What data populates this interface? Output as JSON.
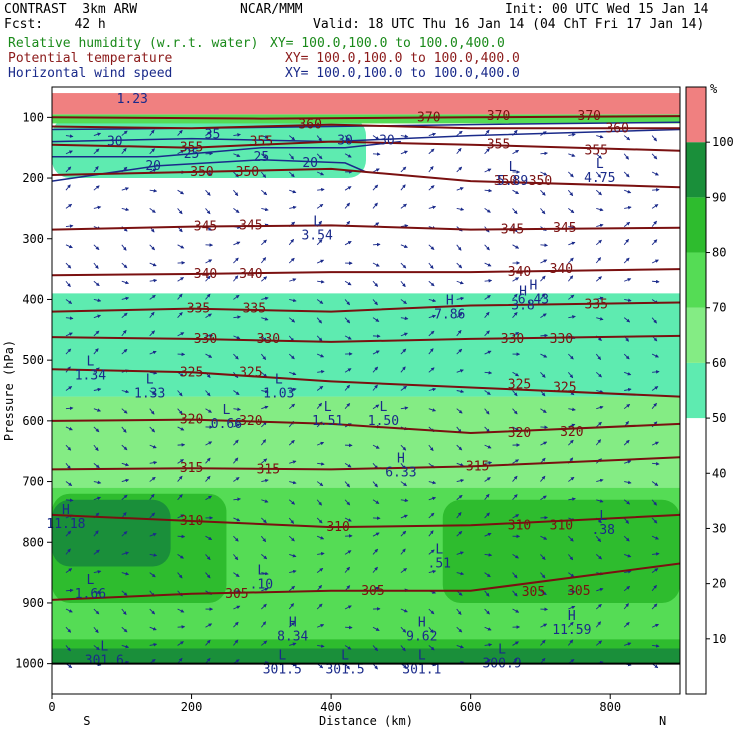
{
  "header": {
    "model": "CONTRAST  3km ARW",
    "fcst": "Fcst:    42 h",
    "org": "NCAR/MMM",
    "init": "Init: 00 UTC Wed 15 Jan 14",
    "valid": "Valid: 18 UTC Thu 16 Jan 14 (04 ChT Fri 17 Jan 14)",
    "fields": [
      {
        "name": "Relative humidity (w.r.t. water)",
        "xy": "XY= 100.0,100.0 to 100.0,400.0",
        "color": "#1a8a1a"
      },
      {
        "name": "Potential temperature",
        "xy": "XY= 100.0,100.0 to 100.0,400.0",
        "color": "#8b1a1a"
      },
      {
        "name": "Horizontal wind speed",
        "xy": "XY= 100.0,100.0 to 100.0,400.0",
        "color": "#1a2a8a"
      }
    ]
  },
  "chart_data": {
    "type": "heatmap",
    "xlabel": "Distance (km)",
    "ylabel": "Pressure (hPa)",
    "xlim": [
      0,
      900
    ],
    "ylim": [
      1050,
      50
    ],
    "x_ticks": [
      0,
      200,
      400,
      600,
      800
    ],
    "y_ticks": [
      100,
      200,
      300,
      400,
      500,
      600,
      700,
      800,
      900,
      1000
    ],
    "x_end_labels": {
      "left": "S",
      "right": "N"
    },
    "colorbar": {
      "unit": "%",
      "ticks": [
        10,
        20,
        30,
        40,
        50,
        60,
        70,
        80,
        90,
        100
      ],
      "levels": [
        {
          "from": 50,
          "to": 60,
          "color": "#5eebb0"
        },
        {
          "from": 60,
          "to": 70,
          "color": "#84ec84"
        },
        {
          "from": 70,
          "to": 80,
          "color": "#55dc55"
        },
        {
          "from": 80,
          "to": 90,
          "color": "#2ebc2e"
        },
        {
          "from": 90,
          "to": 100,
          "color": "#1a8f3a"
        },
        {
          "from": 100,
          "to": 110,
          "color": "#f08080"
        }
      ]
    },
    "rh_regions": [
      {
        "x0": 0,
        "x1": 900,
        "p0": 1000,
        "p1": 710,
        "level": 70
      },
      {
        "x0": 0,
        "x1": 900,
        "p0": 710,
        "p1": 560,
        "level": 60
      },
      {
        "x0": 0,
        "x1": 900,
        "p0": 560,
        "p1": 480,
        "level": 50
      },
      {
        "x0": 0,
        "x1": 900,
        "p0": 480,
        "p1": 390,
        "level": 50
      },
      {
        "x0": 0,
        "x1": 250,
        "p0": 900,
        "p1": 720,
        "level": 80
      },
      {
        "x0": 0,
        "x1": 170,
        "p0": 840,
        "p1": 730,
        "level": 90
      },
      {
        "x0": 560,
        "x1": 900,
        "p0": 900,
        "p1": 730,
        "level": 80
      },
      {
        "x0": 0,
        "x1": 900,
        "p0": 1000,
        "p1": 960,
        "level": 80
      },
      {
        "x0": 0,
        "x1": 900,
        "p0": 1000,
        "p1": 975,
        "level": 90
      },
      {
        "x0": 0,
        "x1": 450,
        "p0": 200,
        "p1": 100,
        "level": 50
      },
      {
        "x0": 0,
        "x1": 900,
        "p0": 110,
        "p1": 95,
        "level": 70
      },
      {
        "x0": 0,
        "x1": 900,
        "p0": 95,
        "p1": 60,
        "level": 100
      }
    ],
    "theta_contours": [
      {
        "label": "305",
        "points": [
          [
            0,
            895
          ],
          [
            200,
            885
          ],
          [
            400,
            880
          ],
          [
            600,
            880
          ],
          [
            900,
            835
          ]
        ]
      },
      {
        "label": "310",
        "points": [
          [
            0,
            755
          ],
          [
            200,
            765
          ],
          [
            400,
            775
          ],
          [
            600,
            772
          ],
          [
            900,
            755
          ]
        ]
      },
      {
        "label": "315",
        "points": [
          [
            0,
            680
          ],
          [
            200,
            678
          ],
          [
            400,
            680
          ],
          [
            600,
            675
          ],
          [
            900,
            660
          ]
        ]
      },
      {
        "label": "320",
        "points": [
          [
            0,
            600
          ],
          [
            200,
            598
          ],
          [
            400,
            605
          ],
          [
            600,
            620
          ],
          [
            900,
            605
          ]
        ]
      },
      {
        "label": "325",
        "points": [
          [
            0,
            515
          ],
          [
            200,
            520
          ],
          [
            400,
            535
          ],
          [
            600,
            545
          ],
          [
            900,
            560
          ]
        ]
      },
      {
        "label": "330",
        "points": [
          [
            0,
            462
          ],
          [
            200,
            465
          ],
          [
            400,
            470
          ],
          [
            600,
            465
          ],
          [
            900,
            460
          ]
        ]
      },
      {
        "label": "335",
        "points": [
          [
            0,
            420
          ],
          [
            200,
            415
          ],
          [
            400,
            420
          ],
          [
            600,
            410
          ],
          [
            900,
            405
          ]
        ]
      },
      {
        "label": "340",
        "points": [
          [
            0,
            360
          ],
          [
            200,
            358
          ],
          [
            400,
            355
          ],
          [
            600,
            355
          ],
          [
            900,
            350
          ]
        ]
      },
      {
        "label": "345",
        "points": [
          [
            0,
            285
          ],
          [
            200,
            280
          ],
          [
            400,
            278
          ],
          [
            600,
            285
          ],
          [
            900,
            282
          ]
        ]
      },
      {
        "label": "350",
        "points": [
          [
            0,
            195
          ],
          [
            200,
            190
          ],
          [
            400,
            185
          ],
          [
            600,
            205
          ],
          [
            900,
            215
          ]
        ]
      },
      {
        "label": "355",
        "points": [
          [
            0,
            145
          ],
          [
            200,
            150
          ],
          [
            400,
            140
          ],
          [
            600,
            145
          ],
          [
            900,
            155
          ]
        ]
      },
      {
        "label": "360",
        "points": [
          [
            0,
            115
          ],
          [
            200,
            118
          ],
          [
            400,
            112
          ],
          [
            600,
            118
          ],
          [
            900,
            118
          ]
        ]
      },
      {
        "label": "370",
        "points": [
          [
            0,
            100
          ],
          [
            300,
            102
          ],
          [
            600,
            100
          ],
          [
            900,
            98
          ]
        ]
      }
    ],
    "theta_labels": [
      {
        "text": "305",
        "x": 265,
        "p": 885
      },
      {
        "text": "305",
        "x": 460,
        "p": 880
      },
      {
        "text": "305",
        "x": 690,
        "p": 882
      },
      {
        "text": "305",
        "x": 755,
        "p": 880
      },
      {
        "text": "310",
        "x": 200,
        "p": 765
      },
      {
        "text": "310",
        "x": 410,
        "p": 775
      },
      {
        "text": "310",
        "x": 670,
        "p": 772
      },
      {
        "text": "310",
        "x": 730,
        "p": 772
      },
      {
        "text": "315",
        "x": 200,
        "p": 678
      },
      {
        "text": "315",
        "x": 310,
        "p": 680
      },
      {
        "text": "315",
        "x": 610,
        "p": 675
      },
      {
        "text": "320",
        "x": 200,
        "p": 598
      },
      {
        "text": "320",
        "x": 285,
        "p": 600
      },
      {
        "text": "320",
        "x": 670,
        "p": 620
      },
      {
        "text": "320",
        "x": 745,
        "p": 618
      },
      {
        "text": "325",
        "x": 200,
        "p": 520
      },
      {
        "text": "325",
        "x": 285,
        "p": 520
      },
      {
        "text": "325",
        "x": 670,
        "p": 540
      },
      {
        "text": "325",
        "x": 735,
        "p": 545
      },
      {
        "text": "330",
        "x": 220,
        "p": 465
      },
      {
        "text": "330",
        "x": 310,
        "p": 465
      },
      {
        "text": "330",
        "x": 660,
        "p": 465
      },
      {
        "text": "330",
        "x": 730,
        "p": 465
      },
      {
        "text": "335",
        "x": 210,
        "p": 415
      },
      {
        "text": "335",
        "x": 290,
        "p": 415
      },
      {
        "text": "335",
        "x": 780,
        "p": 408
      },
      {
        "text": "340",
        "x": 220,
        "p": 358
      },
      {
        "text": "340",
        "x": 285,
        "p": 358
      },
      {
        "text": "340",
        "x": 670,
        "p": 355
      },
      {
        "text": "340",
        "x": 730,
        "p": 350
      },
      {
        "text": "345",
        "x": 220,
        "p": 280
      },
      {
        "text": "345",
        "x": 285,
        "p": 278
      },
      {
        "text": "345",
        "x": 660,
        "p": 285
      },
      {
        "text": "345",
        "x": 735,
        "p": 282
      },
      {
        "text": "350",
        "x": 215,
        "p": 190
      },
      {
        "text": "350",
        "x": 280,
        "p": 190
      },
      {
        "text": "350",
        "x": 650,
        "p": 205
      },
      {
        "text": "350",
        "x": 700,
        "p": 205
      },
      {
        "text": "355",
        "x": 200,
        "p": 150
      },
      {
        "text": "355",
        "x": 300,
        "p": 140
      },
      {
        "text": "355",
        "x": 640,
        "p": 145
      },
      {
        "text": "355",
        "x": 780,
        "p": 155
      },
      {
        "text": "360",
        "x": 370,
        "p": 112
      },
      {
        "text": "360",
        "x": 810,
        "p": 118
      },
      {
        "text": "370",
        "x": 540,
        "p": 100
      },
      {
        "text": "370",
        "x": 640,
        "p": 98
      },
      {
        "text": "370",
        "x": 770,
        "p": 98
      }
    ],
    "wind_contours": [
      {
        "label": "20",
        "points": [
          [
            0,
            205
          ],
          [
            150,
            180
          ],
          [
            300,
            170
          ],
          [
            420,
            175
          ],
          [
            450,
            190
          ]
        ]
      },
      {
        "label": "25",
        "points": [
          [
            0,
            165
          ],
          [
            150,
            165
          ],
          [
            300,
            150
          ],
          [
            420,
            150
          ],
          [
            500,
            140
          ]
        ]
      },
      {
        "label": "30",
        "points": [
          [
            0,
            140
          ],
          [
            200,
            135
          ],
          [
            400,
            140
          ],
          [
            600,
            130
          ],
          [
            900,
            120
          ]
        ]
      },
      {
        "label": "35",
        "points": [
          [
            0,
            120
          ],
          [
            200,
            118
          ],
          [
            400,
            115
          ],
          [
            600,
            112
          ],
          [
            900,
            108
          ]
        ]
      }
    ],
    "wind_labels": [
      {
        "text": "20",
        "x": 145,
        "p": 180
      },
      {
        "text": "20",
        "x": 370,
        "p": 175
      },
      {
        "text": "25",
        "x": 200,
        "p": 160
      },
      {
        "text": "25",
        "x": 300,
        "p": 165
      },
      {
        "text": "30",
        "x": 90,
        "p": 140
      },
      {
        "text": "30",
        "x": 420,
        "p": 138
      },
      {
        "text": "30",
        "x": 480,
        "p": 138
      },
      {
        "text": "35",
        "x": 230,
        "p": 128
      },
      {
        "text": "1.23",
        "x": 115,
        "p": 70
      }
    ],
    "extrema": [
      {
        "type": "L",
        "x": 55,
        "p": 515,
        "value": "1.34"
      },
      {
        "type": "L",
        "x": 140,
        "p": 545,
        "value": "1.33"
      },
      {
        "type": "L",
        "x": 250,
        "p": 595,
        "value": "0.66"
      },
      {
        "type": "L",
        "x": 325,
        "p": 545,
        "value": "1.03"
      },
      {
        "type": "L",
        "x": 395,
        "p": 590,
        "value": "1.51"
      },
      {
        "type": "L",
        "x": 475,
        "p": 590,
        "value": "1.50"
      },
      {
        "type": "L",
        "x": 380,
        "p": 285,
        "value": "3.54"
      },
      {
        "type": "L",
        "x": 660,
        "p": 195,
        "value": "5.89"
      },
      {
        "type": "L",
        "x": 785,
        "p": 190,
        "value": "4.75"
      },
      {
        "type": "H",
        "x": 570,
        "p": 415,
        "value": "7.86"
      },
      {
        "type": "H",
        "x": 675,
        "p": 400,
        "value": "3.8"
      },
      {
        "type": "H",
        "x": 690,
        "p": 390,
        "value": "6.43"
      },
      {
        "type": "H",
        "x": 500,
        "p": 675,
        "value": "6.33"
      },
      {
        "type": "H",
        "x": 20,
        "p": 760,
        "value": "11.18"
      },
      {
        "type": "L",
        "x": 555,
        "p": 825,
        "value": ".51"
      },
      {
        "type": "L",
        "x": 790,
        "p": 770,
        "value": ".38"
      },
      {
        "type": "L",
        "x": 300,
        "p": 860,
        "value": ".10"
      },
      {
        "type": "L",
        "x": 55,
        "p": 875,
        "value": "1.66"
      },
      {
        "type": "H",
        "x": 345,
        "p": 945,
        "value": "8.34"
      },
      {
        "type": "H",
        "x": 530,
        "p": 945,
        "value": "9.62"
      },
      {
        "type": "H",
        "x": 745,
        "p": 935,
        "value": "11.59"
      },
      {
        "type": "L",
        "x": 75,
        "p": 985,
        "value": "301.6"
      },
      {
        "type": "L",
        "x": 330,
        "p": 1000,
        "value": "301.5"
      },
      {
        "type": "L",
        "x": 420,
        "p": 1000,
        "value": "301.5"
      },
      {
        "type": "L",
        "x": 530,
        "p": 1000,
        "value": "301.1"
      },
      {
        "type": "L",
        "x": 645,
        "p": 990,
        "value": "300.9"
      }
    ]
  }
}
